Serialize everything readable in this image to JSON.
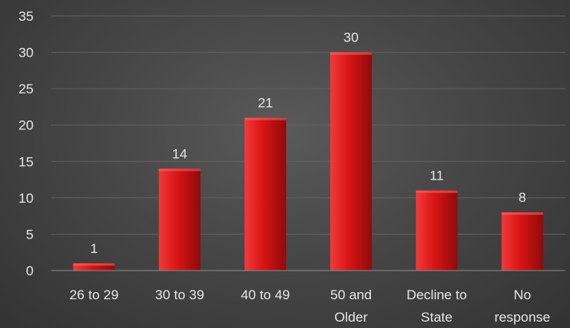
{
  "chart_data": {
    "type": "bar",
    "title": "",
    "xlabel": "",
    "ylabel": "",
    "categories": [
      [
        "26 to 29"
      ],
      [
        "30 to 39"
      ],
      [
        "40 to 49"
      ],
      [
        "50 and",
        "Older"
      ],
      [
        "Decline to",
        "State"
      ],
      [
        "No",
        "response"
      ]
    ],
    "values": [
      1,
      14,
      21,
      30,
      11,
      8
    ],
    "ylim": [
      0,
      35
    ],
    "yticks": [
      0,
      5,
      10,
      15,
      20,
      25,
      30,
      35
    ],
    "grid": true,
    "legend": "none",
    "colors": {
      "bar_light": "#f23a3a",
      "bar_mid": "#d81414",
      "bar_dark": "#8e0b0b",
      "background": "#474747"
    }
  }
}
